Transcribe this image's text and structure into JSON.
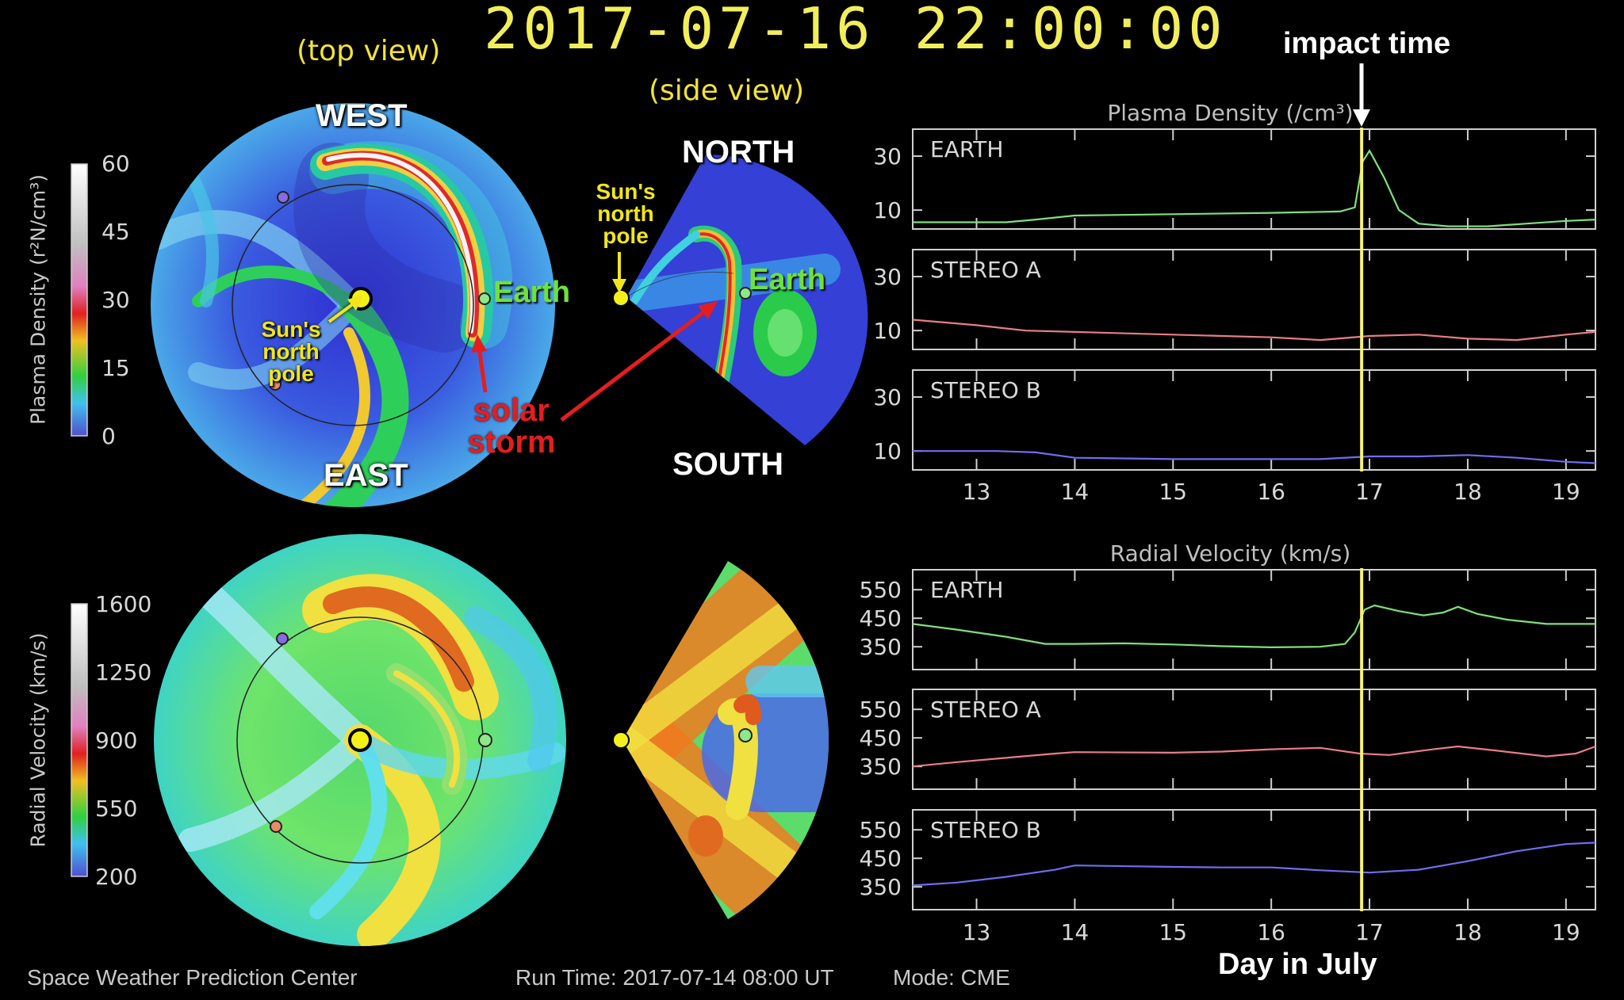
{
  "header": {
    "timestamp": "2017-07-16 22:00:00",
    "top_view": "(top view)",
    "side_view": "(side view)"
  },
  "colorbars": {
    "density": {
      "label": "Plasma Density (r²N/cm³)",
      "ticks": [
        "60",
        "45",
        "30",
        "15",
        "0"
      ]
    },
    "velocity": {
      "label": "Radial Velocity (km/s)",
      "ticks": [
        "1600",
        "1250",
        "900",
        "550",
        "200"
      ]
    }
  },
  "annotations": {
    "west": "WEST",
    "east": "EAST",
    "north": "NORTH",
    "south": "SOUTH",
    "earth": "Earth",
    "sun_pole_top": [
      "Sun's",
      "north",
      "pole"
    ],
    "sun_pole_side": [
      "Sun's",
      "north",
      "pole"
    ],
    "solar_storm": [
      "solar",
      "storm"
    ],
    "impact_time": "impact time",
    "day_label": "Day in July"
  },
  "footer": {
    "center": "Space Weather Prediction Center",
    "run_time": "Run Time: 2017-07-14 08:00 UT",
    "mode": "Mode: CME"
  },
  "colors": {
    "earth_series": "#7fe07a",
    "stereo_a_series": "#e87d86",
    "stereo_b_series": "#6e6ef0",
    "impact_line": "#f5f07a",
    "annotation_yellow": "#f2e23a",
    "annotation_red": "#e41e1e"
  },
  "chart_data": [
    {
      "type": "line",
      "title": "Plasma Density (/cm³)",
      "xlabel": "Day in July",
      "xlim": [
        12.35,
        19.3
      ],
      "xticks": [
        13,
        14,
        15,
        16,
        17,
        18,
        19
      ],
      "xtick_labels": [
        "13",
        "14",
        "15",
        "16",
        "17",
        "18",
        "19"
      ],
      "impact_x": 16.92,
      "panels": [
        {
          "name": "EARTH",
          "ylim": [
            3,
            40
          ],
          "yticks": [
            30,
            10
          ],
          "ytick_labels": [
            "30",
            "10"
          ],
          "x": [
            12.35,
            13.3,
            13.6,
            14.0,
            15.0,
            16.0,
            16.7,
            16.85,
            16.93,
            17.0,
            17.15,
            17.3,
            17.5,
            17.8,
            18.2,
            18.6,
            19.0,
            19.3
          ],
          "y": [
            5.5,
            5.5,
            6.5,
            8,
            8.5,
            9,
            9.5,
            11,
            28,
            32,
            22,
            10,
            5,
            4,
            4,
            5,
            6,
            6.5
          ]
        },
        {
          "name": "STEREO A",
          "ylim": [
            3,
            40
          ],
          "yticks": [
            30,
            10
          ],
          "ytick_labels": [
            "30",
            "10"
          ],
          "x": [
            12.35,
            13.0,
            13.5,
            14.0,
            15.0,
            15.5,
            16.0,
            16.5,
            17.0,
            17.5,
            18.0,
            18.5,
            19.0,
            19.3
          ],
          "y": [
            14,
            12,
            10,
            9.5,
            8.5,
            8,
            7.5,
            6.5,
            8,
            8.5,
            7,
            6.5,
            8.5,
            9.5
          ]
        },
        {
          "name": "STEREO B",
          "ylim": [
            3,
            40
          ],
          "yticks": [
            30,
            10
          ],
          "ytick_labels": [
            "30",
            "10"
          ],
          "x": [
            12.35,
            13.2,
            13.6,
            14.0,
            15.0,
            16.0,
            16.5,
            17.0,
            17.5,
            18.0,
            18.5,
            19.0,
            19.3
          ],
          "y": [
            10,
            10,
            9.5,
            7.5,
            7,
            7,
            7,
            8,
            8,
            8.5,
            7.5,
            6,
            5.5
          ]
        }
      ]
    },
    {
      "type": "line",
      "title": "Radial Velocity (km/s)",
      "xlabel": "Day in July",
      "xlim": [
        12.35,
        19.3
      ],
      "xticks": [
        13,
        14,
        15,
        16,
        17,
        18,
        19
      ],
      "xtick_labels": [
        "13",
        "14",
        "15",
        "16",
        "17",
        "18",
        "19"
      ],
      "impact_x": 16.92,
      "panels": [
        {
          "name": "EARTH",
          "ylim": [
            270,
            620
          ],
          "yticks": [
            550,
            450,
            350
          ],
          "ytick_labels": [
            "550",
            "450",
            "350"
          ],
          "x": [
            12.35,
            12.8,
            13.3,
            13.7,
            14.0,
            14.5,
            15.0,
            15.5,
            16.0,
            16.5,
            16.75,
            16.85,
            16.95,
            17.05,
            17.3,
            17.55,
            17.75,
            17.9,
            18.1,
            18.4,
            18.8,
            19.3
          ],
          "y": [
            430,
            410,
            385,
            360,
            360,
            362,
            358,
            352,
            348,
            350,
            360,
            400,
            480,
            495,
            475,
            460,
            470,
            490,
            465,
            445,
            430,
            430
          ]
        },
        {
          "name": "STEREO A",
          "ylim": [
            270,
            620
          ],
          "yticks": [
            550,
            450,
            350
          ],
          "ytick_labels": [
            "550",
            "450",
            "350"
          ],
          "x": [
            12.35,
            12.8,
            13.3,
            13.8,
            14.0,
            15.0,
            15.5,
            16.0,
            16.5,
            16.9,
            17.2,
            17.6,
            17.9,
            18.3,
            18.8,
            19.1,
            19.3
          ],
          "y": [
            350,
            365,
            380,
            395,
            400,
            398,
            402,
            410,
            415,
            395,
            390,
            408,
            420,
            405,
            385,
            395,
            420
          ]
        },
        {
          "name": "STEREO B",
          "ylim": [
            270,
            620
          ],
          "yticks": [
            550,
            450,
            350
          ],
          "ytick_labels": [
            "550",
            "450",
            "350"
          ],
          "x": [
            12.35,
            12.8,
            13.3,
            13.8,
            14.0,
            15.0,
            15.5,
            16.0,
            16.5,
            17.0,
            17.5,
            18.0,
            18.5,
            19.0,
            19.3
          ],
          "y": [
            355,
            365,
            385,
            410,
            425,
            420,
            418,
            418,
            408,
            400,
            410,
            440,
            475,
            500,
            505
          ]
        }
      ]
    }
  ]
}
